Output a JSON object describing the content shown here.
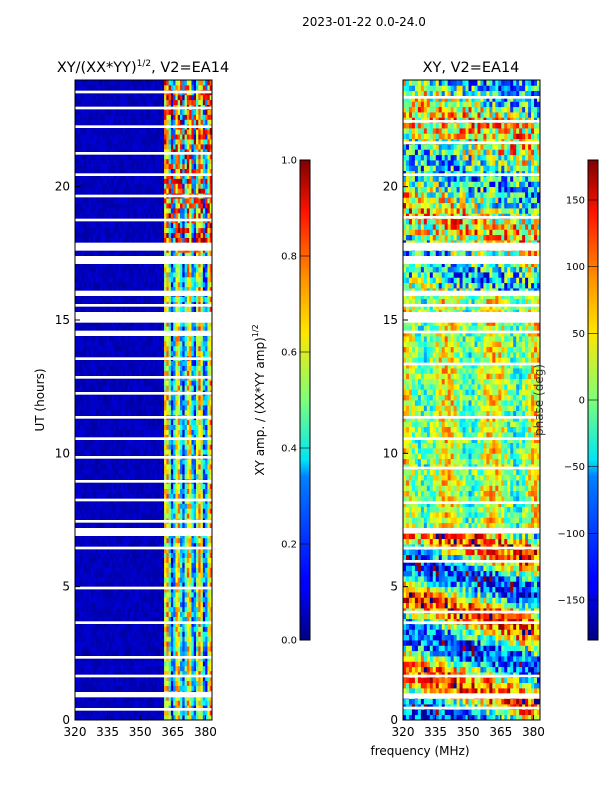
{
  "figure": {
    "suptitle": "2023-01-22 0.0-24.0",
    "xlabel": "frequency (MHz)"
  },
  "chart_data": [
    {
      "type": "heatmap",
      "title": "XY/(XX*YY)",
      "title_superscript": "1/2",
      "title_suffix": ", V2=EA14",
      "xlabel": "",
      "ylabel": "UT (hours)",
      "xlim": [
        320,
        383
      ],
      "ylim": [
        0,
        24
      ],
      "xticks": [
        320,
        335,
        350,
        365,
        380
      ],
      "yticks": [
        0,
        5,
        10,
        15,
        20
      ],
      "colorbar": {
        "label": "XY amp. / (XX*YY amp)",
        "label_superscript": "1/2",
        "range": [
          0.0,
          1.0
        ],
        "ticks": [
          "0.0",
          "0.2",
          "0.4",
          "0.6",
          "0.8",
          "1.0"
        ],
        "tick_values": [
          0.0,
          0.2,
          0.4,
          0.6,
          0.8,
          1.0
        ],
        "colormap": "jet"
      },
      "description_values": "low amplitude (~0.05) below 360 MHz, high amplitude (~0.4-0.8) between 360 and 383 MHz"
    },
    {
      "type": "heatmap",
      "title": "XY, V2=EA14",
      "xlabel": "",
      "ylabel": "",
      "xlim": [
        320,
        383
      ],
      "ylim": [
        0,
        24
      ],
      "xticks": [
        320,
        335,
        350,
        365,
        380
      ],
      "yticks": [
        0,
        5,
        10,
        15,
        20
      ],
      "colorbar": {
        "label": "phase (deg)",
        "range": [
          -180,
          180
        ],
        "ticks": [
          "150",
          "100",
          "50",
          "0",
          "−50",
          "−100",
          "−150"
        ],
        "tick_values": [
          150,
          100,
          50,
          0,
          -50,
          -100,
          -150
        ],
        "colormap": "jet"
      }
    }
  ],
  "colors": {
    "jet_low": "#00007f",
    "jet_high": "#7f0000",
    "flagged": "#ffffff"
  }
}
